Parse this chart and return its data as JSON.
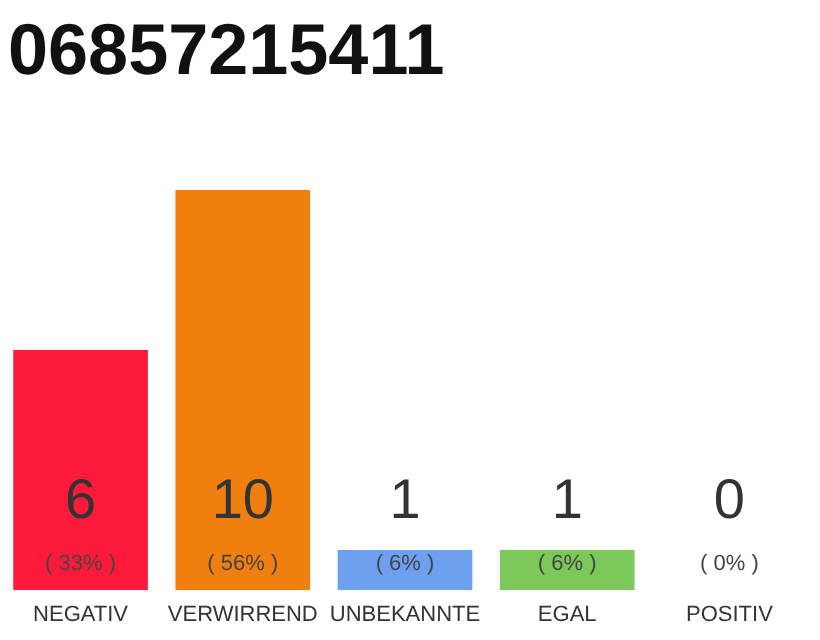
{
  "chart_data": {
    "type": "bar",
    "title": "06857215411",
    "categories": [
      "NEGATIV",
      "VERWIRREND",
      "UNBEKANNTE",
      "EGAL",
      "POSITIV"
    ],
    "values": [
      6,
      10,
      1,
      1,
      0
    ],
    "colors": [
      "#ff1a3c",
      "#f07f10",
      "#6ea0f0",
      "#7dc85a",
      "#aaaaaa"
    ],
    "ylim": [
      0,
      10
    ],
    "tick_labels": "x",
    "data_labels": true,
    "annotations": [
      "( 33% )",
      "( 56% )",
      "( 6% )",
      "( 6% )",
      "( 0% )"
    ]
  }
}
